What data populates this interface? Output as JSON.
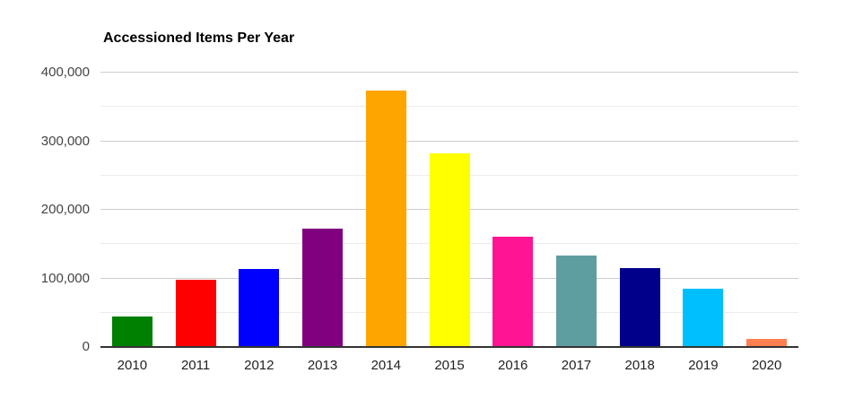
{
  "page": {
    "background": "#ffffff"
  },
  "chart_data": {
    "type": "bar",
    "title": "Accessioned Items Per Year",
    "xlabel": "",
    "ylabel": "",
    "categories": [
      "2010",
      "2011",
      "2012",
      "2013",
      "2014",
      "2015",
      "2016",
      "2017",
      "2018",
      "2019",
      "2020"
    ],
    "values": [
      45000,
      98000,
      114000,
      173000,
      374000,
      282000,
      161000,
      134000,
      115000,
      85000,
      12000
    ],
    "bar_colors": [
      "#008000",
      "#ff0000",
      "#0000ff",
      "#800080",
      "#ffa500",
      "#ffff00",
      "#ff1493",
      "#5f9ea0",
      "#00008b",
      "#00bfff",
      "#ff7f50"
    ],
    "ylim": [
      0,
      400000
    ],
    "y_major_ticks": [
      {
        "value": 0,
        "label": "0"
      },
      {
        "value": 100000,
        "label": "100,000"
      },
      {
        "value": 200000,
        "label": "200,000"
      },
      {
        "value": 300000,
        "label": "300,000"
      },
      {
        "value": 400000,
        "label": "400,000"
      }
    ],
    "y_minor_step": 50000,
    "grid": "on",
    "legend": "none",
    "colors": {
      "major_gridline": "#cccccc",
      "minor_gridline": "#ebebeb",
      "baseline": "#333333",
      "y_axis_text": "#444444",
      "x_axis_text": "#222222",
      "title_text": "#000000"
    }
  }
}
